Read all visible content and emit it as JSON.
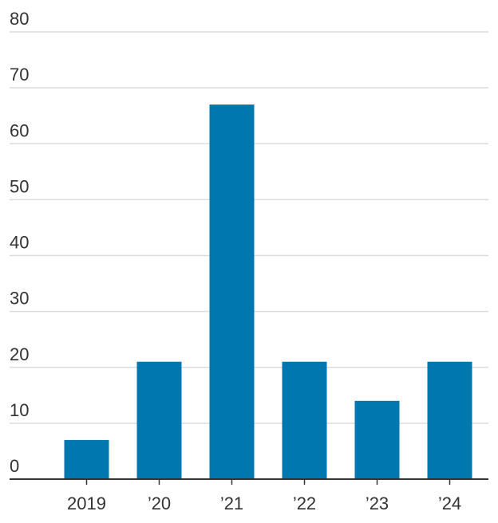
{
  "chart_data": {
    "type": "bar",
    "title": "",
    "xlabel": "",
    "ylabel": "",
    "categories": [
      "2019",
      "’20",
      "’21",
      "’22",
      "’23",
      "’24"
    ],
    "values": [
      7,
      21,
      67,
      21,
      14,
      21
    ],
    "ylim": [
      0,
      80
    ],
    "y_ticks": [
      0,
      10,
      20,
      30,
      40,
      50,
      60,
      70,
      80
    ],
    "y_tick_labels": [
      "0",
      "10",
      "20",
      "30",
      "40",
      "50",
      "60",
      "70",
      "80"
    ],
    "grid": true,
    "bar_color": "#0077AE"
  }
}
